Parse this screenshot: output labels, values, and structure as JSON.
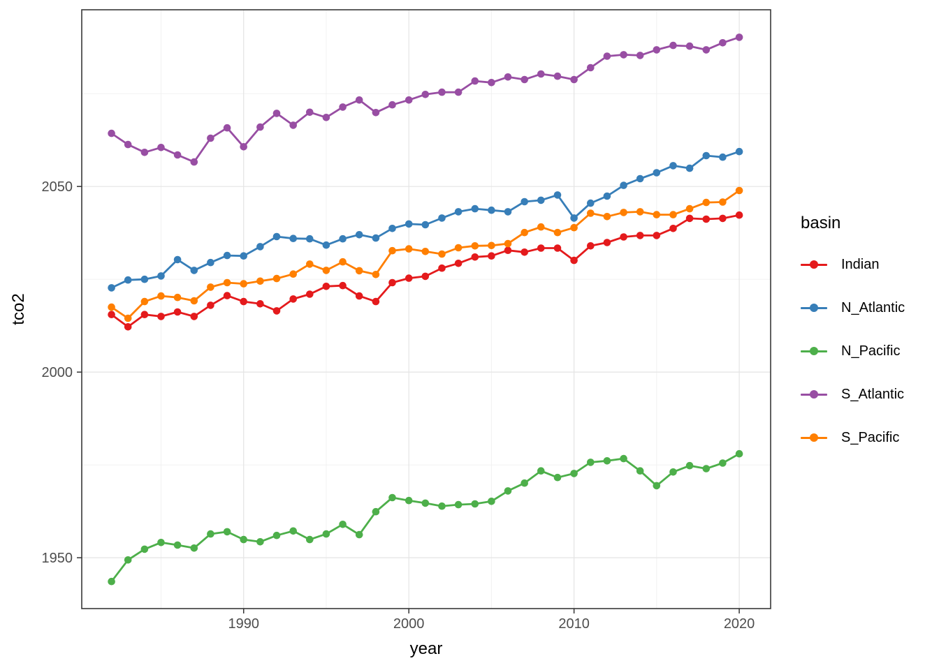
{
  "chart_data": {
    "type": "line",
    "title": "",
    "xlabel": "year",
    "ylabel": "tco2",
    "legend_title": "basin",
    "legend_position": "right",
    "grid": true,
    "x_range": [
      1980.2,
      2021.9
    ],
    "y_range": [
      1936.3,
      2097.6
    ],
    "x_ticks": [
      1990,
      2000,
      2010,
      2020
    ],
    "x_minor_ticks": [
      1985,
      1995,
      2005,
      2015
    ],
    "y_ticks": [
      1950,
      2000,
      2050
    ],
    "y_minor_ticks": [
      1975,
      2025,
      2075
    ],
    "style": {
      "panel_background": "#FFFFFF",
      "panel_border_color": "#383838",
      "grid_major_color": "#E4E4E4",
      "grid_minor_color": "#F0F0F0",
      "tick_color": "#333333",
      "tick_label_color": "#4D4D4D",
      "title_color": "#000000"
    },
    "x": [
      1982,
      1983,
      1984,
      1985,
      1986,
      1987,
      1988,
      1989,
      1990,
      1991,
      1992,
      1993,
      1994,
      1995,
      1996,
      1997,
      1998,
      1999,
      2000,
      2001,
      2002,
      2003,
      2004,
      2005,
      2006,
      2007,
      2008,
      2009,
      2010,
      2011,
      2012,
      2013,
      2014,
      2015,
      2016,
      2017,
      2018,
      2019,
      2020
    ],
    "series": [
      {
        "name": "Indian",
        "color": "#E41A1C",
        "values": [
          2015.5,
          2012.2,
          2015.5,
          2015.0,
          2016.2,
          2015.0,
          2018.0,
          2020.6,
          2019.0,
          2018.4,
          2016.5,
          2019.7,
          2021.0,
          2023.1,
          2023.3,
          2020.5,
          2019.0,
          2024.1,
          2025.3,
          2025.8,
          2028.0,
          2029.3,
          2031.0,
          2031.3,
          2032.8,
          2032.3,
          2033.4,
          2033.4,
          2030.1,
          2034.0,
          2034.9,
          2036.4,
          2036.8,
          2036.8,
          2038.7,
          2041.4,
          2041.2,
          2041.4,
          2042.3
        ]
      },
      {
        "name": "N_Atlantic",
        "color": "#377EB8",
        "values": [
          2022.7,
          2024.8,
          2025.0,
          2025.9,
          2030.3,
          2027.4,
          2029.5,
          2031.4,
          2031.3,
          2033.8,
          2036.5,
          2036.0,
          2035.9,
          2034.2,
          2035.9,
          2037.0,
          2036.1,
          2038.7,
          2039.9,
          2039.7,
          2041.5,
          2043.2,
          2044.0,
          2043.6,
          2043.2,
          2045.9,
          2046.3,
          2047.7,
          2041.5,
          2045.5,
          2047.4,
          2050.3,
          2052.1,
          2053.7,
          2055.6,
          2054.9,
          2058.3,
          2057.9,
          2059.4
        ]
      },
      {
        "name": "N_Pacific",
        "color": "#4DAF4A",
        "values": [
          1943.6,
          1949.4,
          1952.3,
          1954.1,
          1953.4,
          1952.6,
          1956.4,
          1957.0,
          1954.9,
          1954.3,
          1956.0,
          1957.2,
          1954.9,
          1956.4,
          1959.0,
          1956.2,
          1962.4,
          1966.2,
          1965.4,
          1964.7,
          1963.9,
          1964.3,
          1964.5,
          1965.2,
          1968.0,
          1970.1,
          1973.4,
          1971.6,
          1972.7,
          1975.7,
          1976.1,
          1976.7,
          1973.4,
          1969.4,
          1973.1,
          1974.8,
          1974.0,
          1975.5,
          1978.0
        ]
      },
      {
        "name": "S_Atlantic",
        "color": "#984EA3",
        "values": [
          2064.3,
          2061.3,
          2059.2,
          2060.5,
          2058.5,
          2056.6,
          2063.0,
          2065.8,
          2060.7,
          2066.0,
          2069.7,
          2066.5,
          2070.0,
          2068.6,
          2071.4,
          2073.3,
          2069.9,
          2072.0,
          2073.3,
          2074.8,
          2075.4,
          2075.4,
          2078.4,
          2078.0,
          2079.5,
          2078.8,
          2080.3,
          2079.7,
          2078.8,
          2082.0,
          2085.1,
          2085.5,
          2085.3,
          2086.8,
          2088.0,
          2087.8,
          2086.8,
          2088.7,
          2090.2
        ]
      },
      {
        "name": "S_Pacific",
        "color": "#FF7F00",
        "values": [
          2017.5,
          2014.5,
          2019.0,
          2020.5,
          2020.1,
          2019.2,
          2022.9,
          2024.1,
          2023.8,
          2024.5,
          2025.2,
          2026.4,
          2029.1,
          2027.4,
          2029.7,
          2027.3,
          2026.3,
          2032.7,
          2033.2,
          2032.5,
          2031.8,
          2033.5,
          2034.0,
          2034.1,
          2034.6,
          2037.6,
          2039.1,
          2037.6,
          2038.9,
          2042.8,
          2041.9,
          2043.0,
          2043.2,
          2042.4,
          2042.4,
          2044.0,
          2045.7,
          2045.8,
          2048.9
        ]
      }
    ]
  }
}
